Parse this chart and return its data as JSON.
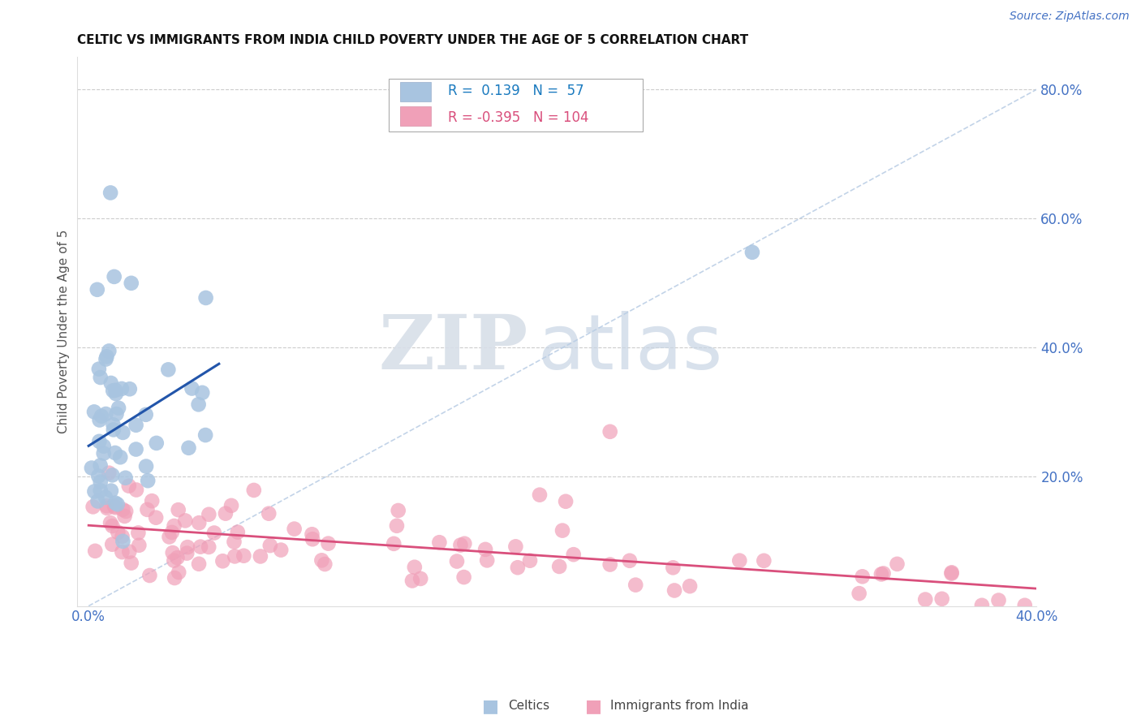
{
  "title": "CELTIC VS IMMIGRANTS FROM INDIA CHILD POVERTY UNDER THE AGE OF 5 CORRELATION CHART",
  "source": "Source: ZipAtlas.com",
  "ylabel": "Child Poverty Under the Age of 5",
  "xlim": [
    0.0,
    0.4
  ],
  "ylim": [
    0.0,
    0.85
  ],
  "right_yticks": [
    0.2,
    0.4,
    0.6,
    0.8
  ],
  "right_ytick_labels": [
    "20.0%",
    "40.0%",
    "60.0%",
    "80.0%"
  ],
  "celtics_color": "#a8c4e0",
  "india_color": "#f0a0b8",
  "celtics_line_color": "#2255aa",
  "india_line_color": "#d94f7c",
  "celtics_R": 0.139,
  "celtics_N": 57,
  "india_R": -0.395,
  "india_N": 104,
  "legend_R_color": "#1a7abf",
  "watermark_zip": "ZIP",
  "watermark_atlas": "atlas",
  "grid_color": "#cccccc",
  "dashed_line_color": "#b8cce4"
}
